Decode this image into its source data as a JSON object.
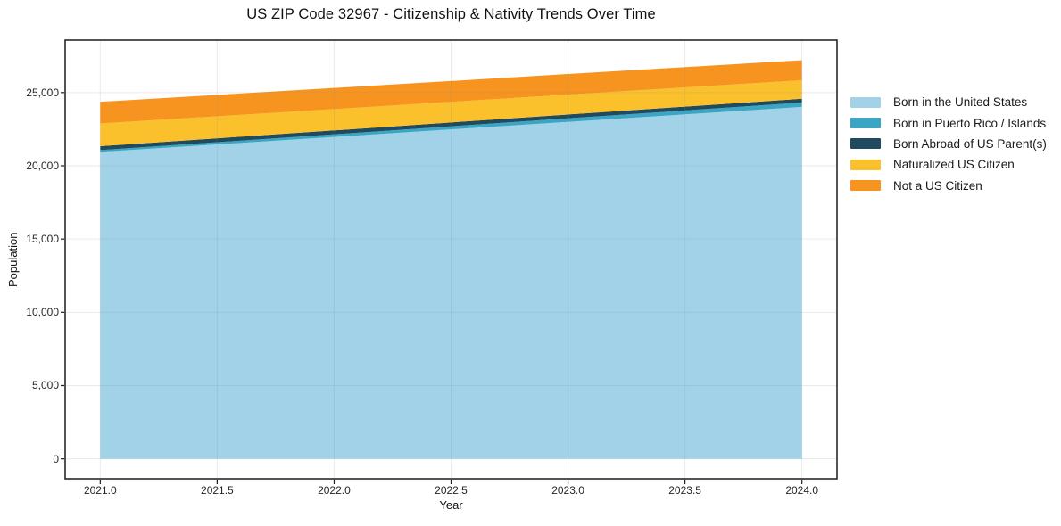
{
  "chart_data": {
    "type": "area",
    "stacked": true,
    "title": "US ZIP Code 32967 - Citizenship & Nativity Trends Over Time",
    "xlabel": "Year",
    "ylabel": "Population",
    "x": [
      2021,
      2022,
      2023,
      2024
    ],
    "series": [
      {
        "name": "Born in the United States",
        "color": "#A1D2E8",
        "values": [
          20950,
          21970,
          23000,
          24020
        ]
      },
      {
        "name": "Born in Puerto Rico / Islands",
        "color": "#3BA6C3",
        "values": [
          120,
          180,
          240,
          300
        ]
      },
      {
        "name": "Born Abroad of US Parent(s)",
        "color": "#204A5D",
        "values": [
          270,
          267,
          263,
          260
        ]
      },
      {
        "name": "Naturalized US Citizen",
        "color": "#FBC12D",
        "values": [
          1550,
          1453,
          1357,
          1260
        ]
      },
      {
        "name": "Not a US Citizen",
        "color": "#F79420",
        "values": [
          1480,
          1443,
          1407,
          1370
        ]
      }
    ],
    "totals": [
      24370,
      25313,
      26267,
      27210
    ],
    "xlim": [
      2020.85,
      2024.15
    ],
    "ylim": [
      -1360,
      28580
    ],
    "x_tick_values": [
      2021.0,
      2021.5,
      2022.0,
      2022.5,
      2023.0,
      2023.5,
      2024.0
    ],
    "x_tick_labels": [
      "2021.0",
      "2021.5",
      "2022.0",
      "2022.5",
      "2023.0",
      "2023.5",
      "2024.0"
    ],
    "y_tick_values": [
      0,
      5000,
      10000,
      15000,
      20000,
      25000
    ],
    "y_tick_labels": [
      "0",
      "5,000",
      "10,000",
      "15,000",
      "20,000",
      "25,000"
    ],
    "grid": true,
    "legend_position": "center-right, outside plot, no frame",
    "spine_color": "#1a1a1a",
    "gridline_color": "rgba(140,140,140,0.18)"
  }
}
